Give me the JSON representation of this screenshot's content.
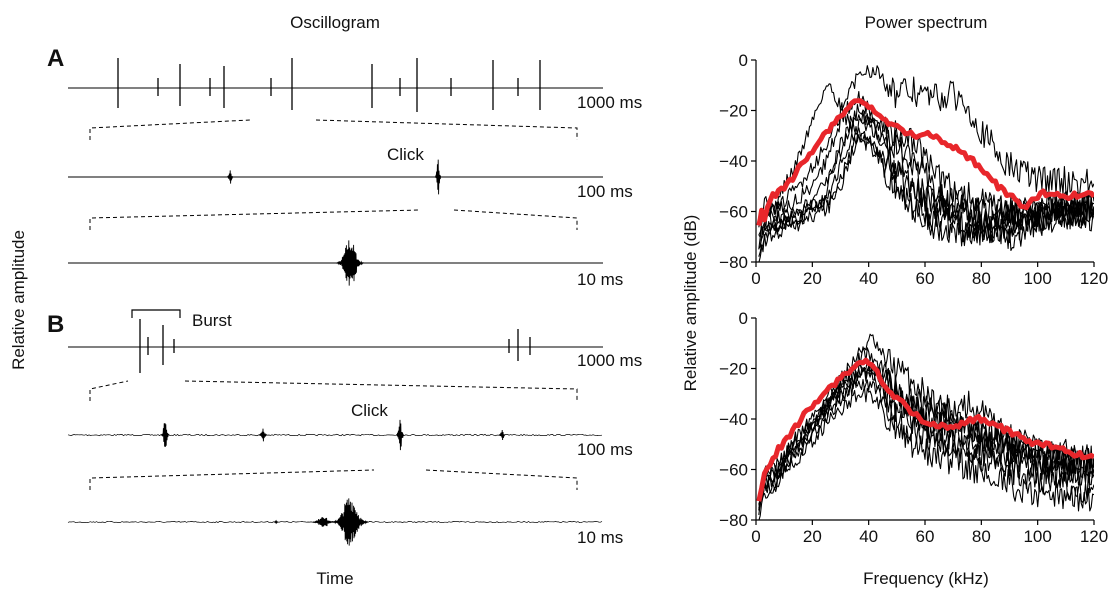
{
  "figure": {
    "left_heading": "Oscillogram",
    "right_heading": "Power spectrum",
    "y_label_left": "Relative amplitude",
    "x_label_left": "Time",
    "panels": [
      "A",
      "B"
    ],
    "click_label": "Click",
    "burst_label": "Burst",
    "scales": [
      "1000 ms",
      "100 ms",
      "10 ms"
    ]
  },
  "colors": {
    "trace": "#000000",
    "mean_spectrum": "#e8262b"
  },
  "chart_data": [
    {
      "type": "line",
      "panel": "A",
      "title": "",
      "xlabel": "Frequency (kHz)",
      "ylabel": "Relative amplitude (dB)",
      "xlim": [
        0,
        120
      ],
      "ylim": [
        -80,
        0
      ],
      "xticks": [
        0,
        20,
        40,
        60,
        80,
        100,
        120
      ],
      "yticks": [
        0,
        -20,
        -40,
        -60,
        -80
      ],
      "series": [
        {
          "role": "mean",
          "color": "#e8262b",
          "x": [
            1,
            2,
            3,
            5,
            8,
            12,
            16,
            20,
            24,
            28,
            31,
            34,
            36,
            38,
            40,
            44,
            48,
            52,
            56,
            60,
            64,
            68,
            72,
            76,
            80,
            84,
            88,
            92,
            95,
            98,
            102,
            106,
            110,
            115,
            120
          ],
          "y": [
            -65,
            -60,
            -63,
            -55,
            -52,
            -48,
            -42,
            -36,
            -30,
            -25,
            -21,
            -18,
            -16,
            -17,
            -19,
            -22,
            -26,
            -28,
            -30,
            -29,
            -31,
            -33,
            -35,
            -39,
            -43,
            -48,
            -52,
            -55,
            -58,
            -56,
            -53,
            -54,
            -54,
            -53,
            -54
          ]
        },
        {
          "role": "individual",
          "color": "#000000",
          "x": [
            1,
            3,
            6,
            10,
            14,
            18,
            22,
            25,
            27,
            30,
            33,
            37,
            42,
            48,
            52,
            56,
            62,
            70,
            80,
            90,
            100,
            110,
            120
          ],
          "y": [
            -72,
            -55,
            -60,
            -50,
            -42,
            -30,
            -18,
            -10,
            -12,
            -18,
            -25,
            -30,
            -36,
            -42,
            -46,
            -50,
            -55,
            -58,
            -60,
            -60,
            -58,
            -58,
            -56
          ]
        },
        {
          "role": "individual",
          "color": "#000000",
          "x": [
            1,
            3,
            6,
            10,
            15,
            20,
            25,
            30,
            34,
            38,
            42,
            46,
            50,
            55,
            60,
            65,
            70,
            75,
            80,
            85,
            90,
            100,
            110,
            120
          ],
          "y": [
            -68,
            -60,
            -62,
            -56,
            -50,
            -42,
            -34,
            -22,
            -10,
            -4,
            -4,
            -7,
            -14,
            -12,
            -14,
            -15,
            -14,
            -17,
            -28,
            -36,
            -42,
            -47,
            -48,
            -49
          ]
        },
        {
          "role": "individual",
          "color": "#000000",
          "x": [
            1,
            4,
            8,
            12,
            18,
            24,
            28,
            32,
            36,
            40,
            44,
            48,
            54,
            58,
            62,
            66,
            72,
            78,
            84,
            90,
            100,
            110,
            120
          ],
          "y": [
            -75,
            -62,
            -58,
            -58,
            -52,
            -42,
            -30,
            -20,
            -14,
            -20,
            -26,
            -28,
            -30,
            -36,
            -42,
            -48,
            -52,
            -56,
            -58,
            -60,
            -60,
            -60,
            -58
          ]
        },
        {
          "role": "individual",
          "color": "#000000",
          "x": [
            1,
            4,
            8,
            14,
            20,
            25,
            30,
            34,
            38,
            44,
            50,
            55,
            58,
            62,
            66,
            72,
            78,
            84,
            90,
            100,
            110,
            120
          ],
          "y": [
            -70,
            -64,
            -62,
            -60,
            -56,
            -48,
            -36,
            -26,
            -22,
            -28,
            -34,
            -38,
            -52,
            -62,
            -58,
            -60,
            -62,
            -64,
            -62,
            -62,
            -60,
            -58
          ]
        },
        {
          "role": "individual",
          "color": "#000000",
          "x": [
            1,
            4,
            8,
            14,
            20,
            24,
            28,
            32,
            36,
            40,
            44,
            48,
            52,
            56,
            60,
            64,
            70,
            76,
            82,
            88,
            94,
            100,
            110,
            120
          ],
          "y": [
            -74,
            -66,
            -64,
            -62,
            -58,
            -56,
            -40,
            -28,
            -20,
            -24,
            -30,
            -34,
            -36,
            -40,
            -46,
            -52,
            -56,
            -62,
            -66,
            -70,
            -70,
            -64,
            -62,
            -60
          ]
        },
        {
          "role": "individual",
          "color": "#000000",
          "x": [
            1,
            4,
            8,
            14,
            20,
            26,
            30,
            34,
            38,
            42,
            46,
            50,
            56,
            62,
            68,
            74,
            80,
            86,
            92,
            100,
            110,
            120
          ],
          "y": [
            -78,
            -68,
            -66,
            -64,
            -60,
            -54,
            -42,
            -30,
            -24,
            -28,
            -36,
            -44,
            -52,
            -56,
            -60,
            -64,
            -68,
            -68,
            -66,
            -64,
            -62,
            -62
          ]
        },
        {
          "role": "individual",
          "color": "#000000",
          "x": [
            1,
            4,
            8,
            14,
            20,
            26,
            30,
            33,
            36,
            40,
            44,
            48,
            52,
            56,
            60,
            66,
            72,
            78,
            86,
            94,
            102,
            110,
            120
          ],
          "y": [
            -72,
            -64,
            -66,
            -62,
            -58,
            -56,
            -50,
            -40,
            -30,
            -34,
            -40,
            -48,
            -54,
            -58,
            -62,
            -64,
            -66,
            -66,
            -64,
            -62,
            -60,
            -58,
            -57
          ]
        },
        {
          "role": "individual",
          "color": "#000000",
          "x": [
            1,
            4,
            8,
            14,
            20,
            26,
            30,
            34,
            38,
            42,
            46,
            50,
            56,
            62,
            68,
            74,
            80,
            86,
            92,
            100,
            110,
            120
          ],
          "y": [
            -76,
            -70,
            -68,
            -66,
            -62,
            -58,
            -48,
            -36,
            -28,
            -32,
            -42,
            -50,
            -58,
            -64,
            -68,
            -70,
            -68,
            -66,
            -64,
            -62,
            -60,
            -60
          ]
        }
      ]
    },
    {
      "type": "line",
      "panel": "B",
      "title": "",
      "xlabel": "Frequency (kHz)",
      "ylabel": "Relative amplitude (dB)",
      "xlim": [
        0,
        120
      ],
      "ylim": [
        -80,
        0
      ],
      "xticks": [
        0,
        20,
        40,
        60,
        80,
        100,
        120
      ],
      "yticks": [
        0,
        -20,
        -40,
        -60,
        -80
      ],
      "series": [
        {
          "role": "mean",
          "color": "#e8262b",
          "x": [
            1,
            3,
            5,
            8,
            12,
            16,
            20,
            24,
            28,
            32,
            36,
            39,
            42,
            45,
            48,
            52,
            56,
            60,
            64,
            68,
            72,
            76,
            80,
            84,
            88,
            92,
            96,
            100,
            105,
            110,
            115,
            120
          ],
          "y": [
            -72,
            -62,
            -58,
            -52,
            -46,
            -40,
            -35,
            -30,
            -26,
            -22,
            -19,
            -17,
            -20,
            -26,
            -30,
            -34,
            -38,
            -41,
            -43,
            -43,
            -42,
            -40,
            -40,
            -42,
            -44,
            -46,
            -48,
            -50,
            -51,
            -53,
            -54,
            -55
          ]
        },
        {
          "role": "individual",
          "color": "#000000",
          "x": [
            1,
            3,
            6,
            10,
            14,
            18,
            22,
            26,
            30,
            34,
            38,
            41,
            44,
            48,
            52,
            56,
            60,
            64,
            68,
            72,
            76,
            80,
            84,
            88,
            92,
            96,
            100,
            105,
            110,
            115,
            120
          ],
          "y": [
            -75,
            -60,
            -62,
            -55,
            -48,
            -42,
            -36,
            -30,
            -24,
            -18,
            -12,
            -8,
            -14,
            -18,
            -22,
            -26,
            -30,
            -34,
            -36,
            -40,
            -44,
            -46,
            -46,
            -48,
            -50,
            -52,
            -54,
            -56,
            -54,
            -56,
            -58
          ]
        },
        {
          "role": "individual",
          "color": "#000000",
          "x": [
            1,
            3,
            6,
            10,
            14,
            18,
            22,
            26,
            30,
            34,
            38,
            42,
            46,
            50,
            54,
            58,
            62,
            66,
            70,
            74,
            78,
            82,
            86,
            90,
            96,
            102,
            108,
            114,
            120
          ],
          "y": [
            -78,
            -64,
            -66,
            -58,
            -52,
            -46,
            -40,
            -34,
            -28,
            -22,
            -18,
            -20,
            -30,
            -36,
            -40,
            -44,
            -46,
            -48,
            -50,
            -50,
            -52,
            -54,
            -56,
            -58,
            -60,
            -60,
            -62,
            -60,
            -62
          ]
        },
        {
          "role": "individual",
          "color": "#000000",
          "x": [
            1,
            3,
            6,
            10,
            14,
            18,
            22,
            26,
            30,
            34,
            38,
            42,
            46,
            50,
            54,
            58,
            62,
            66,
            70,
            74,
            78,
            82,
            86,
            90,
            96,
            102,
            108,
            114,
            120
          ],
          "y": [
            -74,
            -62,
            -60,
            -54,
            -48,
            -44,
            -38,
            -32,
            -26,
            -20,
            -14,
            -16,
            -22,
            -28,
            -32,
            -34,
            -36,
            -38,
            -36,
            -34,
            -36,
            -40,
            -44,
            -48,
            -50,
            -52,
            -54,
            -56,
            -56
          ]
        },
        {
          "role": "individual",
          "color": "#000000",
          "x": [
            1,
            3,
            6,
            10,
            14,
            18,
            22,
            26,
            30,
            34,
            38,
            42,
            46,
            50,
            54,
            58,
            62,
            66,
            70,
            74,
            78,
            82,
            86,
            90,
            96,
            102,
            108,
            114,
            120
          ],
          "y": [
            -76,
            -66,
            -64,
            -58,
            -54,
            -48,
            -42,
            -36,
            -32,
            -28,
            -26,
            -28,
            -34,
            -40,
            -44,
            -46,
            -48,
            -50,
            -50,
            -52,
            -54,
            -56,
            -58,
            -60,
            -62,
            -64,
            -66,
            -68,
            -66
          ]
        },
        {
          "role": "individual",
          "color": "#000000",
          "x": [
            1,
            3,
            6,
            10,
            14,
            18,
            22,
            26,
            30,
            34,
            38,
            42,
            46,
            50,
            54,
            58,
            62,
            66,
            70,
            74,
            78,
            82,
            86,
            90,
            96,
            102,
            108,
            114,
            120
          ],
          "y": [
            -80,
            -68,
            -66,
            -60,
            -54,
            -50,
            -44,
            -38,
            -32,
            -26,
            -22,
            -24,
            -30,
            -34,
            -38,
            -42,
            -44,
            -46,
            -46,
            -44,
            -46,
            -48,
            -50,
            -52,
            -54,
            -56,
            -56,
            -58,
            -60
          ]
        },
        {
          "role": "individual",
          "color": "#000000",
          "x": [
            1,
            3,
            6,
            10,
            14,
            18,
            22,
            26,
            30,
            34,
            38,
            42,
            46,
            50,
            54,
            58,
            62,
            66,
            70,
            74,
            78,
            82,
            86,
            90,
            96,
            102,
            108,
            114,
            120
          ],
          "y": [
            -72,
            -64,
            -62,
            -56,
            -50,
            -46,
            -40,
            -34,
            -28,
            -24,
            -20,
            -22,
            -26,
            -30,
            -34,
            -38,
            -40,
            -42,
            -44,
            -46,
            -48,
            -50,
            -52,
            -54,
            -56,
            -58,
            -60,
            -62,
            -60
          ]
        },
        {
          "role": "individual",
          "color": "#000000",
          "x": [
            1,
            3,
            6,
            10,
            14,
            18,
            22,
            26,
            30,
            34,
            38,
            42,
            46,
            50,
            54,
            58,
            62,
            66,
            70,
            74,
            78,
            82,
            86,
            90,
            96,
            102,
            108,
            114,
            120
          ],
          "y": [
            -78,
            -70,
            -68,
            -62,
            -56,
            -52,
            -46,
            -40,
            -36,
            -32,
            -30,
            -32,
            -38,
            -44,
            -48,
            -52,
            -54,
            -56,
            -56,
            -58,
            -60,
            -62,
            -64,
            -66,
            -68,
            -70,
            -70,
            -72,
            -70
          ]
        },
        {
          "role": "individual",
          "color": "#000000",
          "x": [
            1,
            3,
            6,
            10,
            14,
            18,
            22,
            26,
            30,
            34,
            38,
            42,
            46,
            50,
            54,
            58,
            62,
            66,
            70,
            74,
            78,
            82,
            86,
            90,
            96,
            102,
            108,
            114,
            120
          ],
          "y": [
            -74,
            -66,
            -64,
            -58,
            -52,
            -46,
            -40,
            -34,
            -30,
            -24,
            -20,
            -18,
            -24,
            -30,
            -34,
            -36,
            -38,
            -40,
            -42,
            -42,
            -44,
            -46,
            -48,
            -50,
            -52,
            -54,
            -56,
            -56,
            -58
          ]
        }
      ]
    }
  ]
}
